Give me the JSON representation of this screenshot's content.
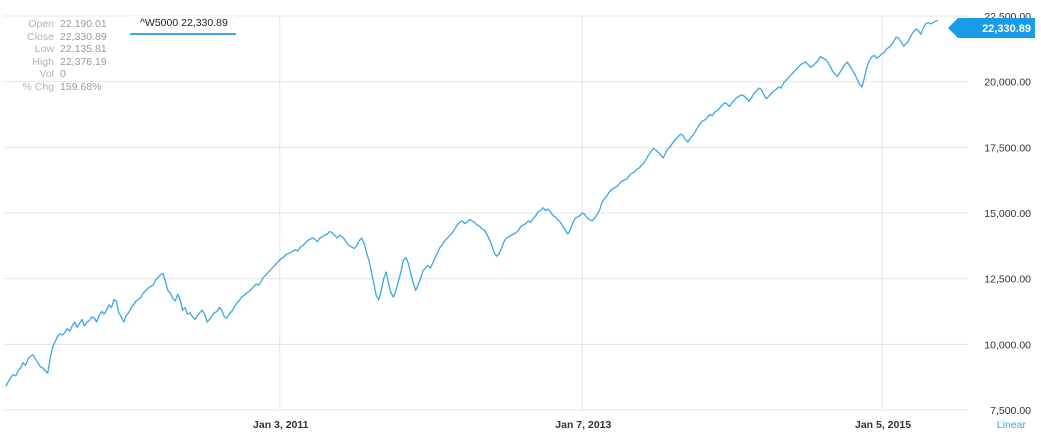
{
  "colors": {
    "line": "#3aa8e4",
    "grid": "#e4e4e4",
    "accent": "#1a9be8"
  },
  "stats": [
    {
      "label": "Open",
      "value": "22,190.01"
    },
    {
      "label": "Close",
      "value": "22,330.89"
    },
    {
      "label": "Low",
      "value": "22,135.81"
    },
    {
      "label": "High",
      "value": "22,376.19"
    },
    {
      "label": "Vol",
      "value": "0"
    },
    {
      "label": "% Chg",
      "value": "159.68%"
    }
  ],
  "legend": {
    "text": "^W5000 22,330.89"
  },
  "price_tag": {
    "text": "22,330.89"
  },
  "scale_mode": "Linear",
  "chart_data": {
    "type": "line",
    "title": "",
    "series": [
      {
        "name": "^W5000",
        "x_start": "2009-03-09",
        "x_end": "2015-05-21",
        "values": [
          8400,
          8600,
          8750,
          8850,
          8800,
          9000,
          9100,
          9300,
          9200,
          9450,
          9550,
          9600,
          9450,
          9300,
          9150,
          9100,
          9000,
          8900,
          9450,
          9900,
          10100,
          10300,
          10400,
          10350,
          10450,
          10600,
          10500,
          10700,
          10850,
          10650,
          10800,
          10950,
          10700,
          10850,
          10900,
          11050,
          11000,
          10850,
          11100,
          11250,
          11150,
          11300,
          11500,
          11400,
          11700,
          11650,
          11200,
          11050,
          10850,
          11100,
          11200,
          11400,
          11500,
          11650,
          11700,
          11800,
          11950,
          12050,
          12150,
          12200,
          12250,
          12450,
          12550,
          12650,
          12700,
          12400,
          12050,
          11950,
          11750,
          11650,
          11900,
          11700,
          11300,
          11400,
          11150,
          11200,
          11050,
          10950,
          11100,
          11200,
          11300,
          11150,
          10850,
          10950,
          11100,
          11200,
          11250,
          11400,
          11300,
          11050,
          11000,
          11150,
          11250,
          11400,
          11550,
          11650,
          11800,
          11850,
          11950,
          12000,
          12100,
          12200,
          12300,
          12250,
          12400,
          12550,
          12650,
          12750,
          12850,
          12950,
          13050,
          13150,
          13250,
          13300,
          13400,
          13450,
          13500,
          13550,
          13600,
          13550,
          13700,
          13750,
          13850,
          13950,
          14000,
          14050,
          14000,
          13900,
          14050,
          14100,
          14150,
          14200,
          14300,
          14250,
          14150,
          14050,
          14150,
          14100,
          14000,
          13850,
          13750,
          13700,
          13650,
          13750,
          13950,
          14050,
          13850,
          13500,
          13200,
          12750,
          12300,
          11850,
          11700,
          12050,
          12500,
          12750,
          12300,
          11950,
          11800,
          12050,
          12400,
          12750,
          13200,
          13300,
          13100,
          12700,
          12350,
          12050,
          12250,
          12500,
          12800,
          12900,
          13000,
          12900,
          13100,
          13300,
          13500,
          13700,
          13800,
          13950,
          14050,
          14150,
          14250,
          14400,
          14550,
          14650,
          14700,
          14600,
          14650,
          14750,
          14700,
          14650,
          14550,
          14500,
          14400,
          14350,
          14200,
          14000,
          13800,
          13500,
          13350,
          13450,
          13650,
          13900,
          14050,
          14100,
          14150,
          14200,
          14250,
          14350,
          14500,
          14550,
          14600,
          14700,
          14650,
          14800,
          14900,
          15050,
          15100,
          15200,
          15100,
          15150,
          15050,
          14900,
          14850,
          14750,
          14650,
          14500,
          14350,
          14200,
          14350,
          14600,
          14800,
          14850,
          14900,
          15000,
          14950,
          14800,
          14750,
          14700,
          14800,
          14950,
          15100,
          15400,
          15550,
          15650,
          15800,
          15900,
          15950,
          16000,
          16100,
          16200,
          16250,
          16300,
          16400,
          16500,
          16550,
          16650,
          16700,
          16800,
          16900,
          17050,
          17200,
          17350,
          17450,
          17400,
          17300,
          17200,
          17100,
          17300,
          17450,
          17550,
          17700,
          17800,
          17900,
          18000,
          17950,
          17800,
          17700,
          17850,
          17950,
          18100,
          18250,
          18400,
          18500,
          18550,
          18650,
          18750,
          18700,
          18850,
          18900,
          19000,
          19100,
          19200,
          19150,
          19050,
          19200,
          19300,
          19400,
          19450,
          19500,
          19450,
          19350,
          19250,
          19400,
          19550,
          19650,
          19750,
          19700,
          19500,
          19350,
          19450,
          19550,
          19650,
          19700,
          19800,
          19750,
          19950,
          20050,
          20150,
          20250,
          20350,
          20450,
          20550,
          20650,
          20700,
          20750,
          20650,
          20550,
          20600,
          20700,
          20800,
          20950,
          20900,
          20850,
          20750,
          20600,
          20400,
          20300,
          20200,
          20350,
          20500,
          20650,
          20750,
          20600,
          20450,
          20300,
          20100,
          19900,
          19800,
          20150,
          20550,
          20800,
          20950,
          21000,
          20900,
          20950,
          21050,
          21100,
          21250,
          21300,
          21400,
          21550,
          21700,
          21650,
          21500,
          21350,
          21450,
          21550,
          21750,
          21900,
          22000,
          21950,
          21800,
          22050,
          22200,
          22250,
          22200,
          22250,
          22300,
          22330.89
        ]
      }
    ],
    "ylim": [
      7500,
      22500
    ],
    "yticks": [
      7500,
      10000,
      12500,
      15000,
      17500,
      20000,
      22500
    ],
    "ytick_labels": [
      "7,500.00",
      "10,000.00",
      "12,500.00",
      "15,000.00",
      "17,500.00",
      "20,000.00",
      "22,500.00"
    ],
    "xticks": [
      {
        "date": "2011-01-03",
        "label": "Jan 3, 2011"
      },
      {
        "date": "2013-01-07",
        "label": "Jan 7, 2013"
      },
      {
        "date": "2015-01-05",
        "label": "Jan 5, 2015"
      }
    ],
    "xlabel": "",
    "ylabel": "",
    "grid": true,
    "yaxis_position": "right",
    "scale": "linear"
  }
}
